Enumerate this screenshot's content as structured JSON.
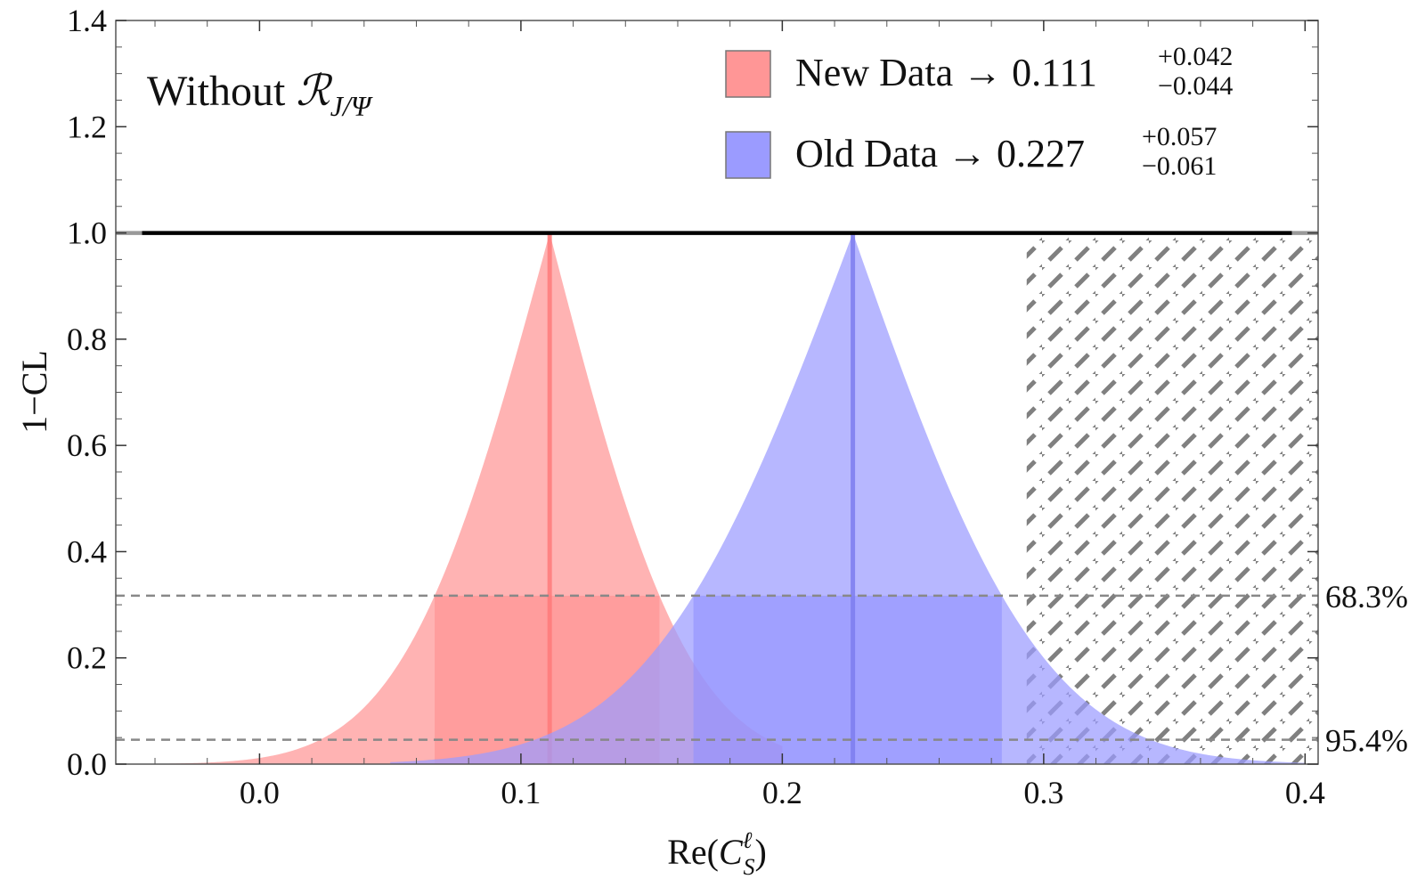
{
  "chart_data": {
    "type": "area",
    "title": "",
    "annotation": {
      "prefix": "Without ",
      "script": "ℛ",
      "subscript": "J/Ψ"
    },
    "xlabel": {
      "prefix": "Re(",
      "symbol": "C",
      "sup": "ℓ",
      "sub": "S",
      "suffix": ")"
    },
    "ylabel": "1−CL",
    "xlim": [
      -0.055,
      0.405
    ],
    "ylim": [
      0,
      1.4
    ],
    "x_ticks": [
      0.0,
      0.1,
      0.2,
      0.3,
      0.4
    ],
    "x_tick_labels": [
      "0.0",
      "0.1",
      "0.2",
      "0.3",
      "0.4"
    ],
    "y_ticks": [
      0.0,
      0.2,
      0.4,
      0.6,
      0.8,
      1.0,
      1.2,
      1.4
    ],
    "y_tick_labels": [
      "0.0",
      "0.2",
      "0.4",
      "0.6",
      "0.8",
      "1.0",
      "1.2",
      "1.4"
    ],
    "reference_lines": [
      {
        "y": 1.0,
        "style": "solid",
        "color": "#000000"
      },
      {
        "y": 0.317,
        "style": "dashed",
        "color": "#888888",
        "label": "68.3%"
      },
      {
        "y": 0.046,
        "style": "dashed",
        "color": "#888888",
        "label": "95.4%"
      }
    ],
    "excluded_region": {
      "x_from": 0.2935,
      "x_to": 0.405,
      "y_max": 1.0,
      "pattern": "hatched"
    },
    "series": [
      {
        "name": "New Data",
        "legend_text": "New Data → 0.111",
        "sup": "+0.042",
        "sub": "−0.044",
        "center": 0.111,
        "err_plus": 0.042,
        "err_minus": 0.044,
        "x_min": -0.04,
        "x_max": 0.2,
        "color": "#ff9696",
        "fill": "#ff8a8a",
        "line": "#ff7a7a"
      },
      {
        "name": "Old Data",
        "legend_text": "Old Data → 0.227",
        "sup": "+0.057",
        "sub": "−0.061",
        "center": 0.227,
        "err_plus": 0.057,
        "err_minus": 0.061,
        "x_min": 0.05,
        "x_max": 0.4,
        "color": "#9b9bff",
        "fill": "#8e8eff",
        "line": "#7d7dee"
      }
    ],
    "legend_position": "top-right",
    "grid": false
  }
}
